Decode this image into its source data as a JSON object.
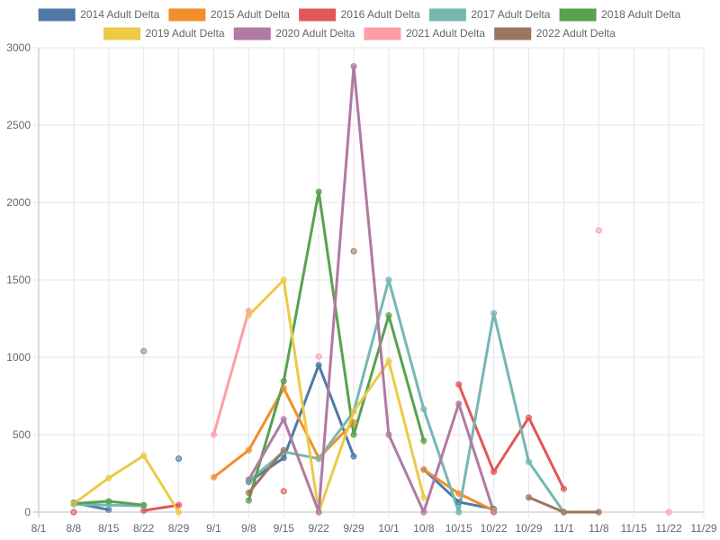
{
  "chart_data": {
    "type": "line",
    "title": "",
    "xlabel": "",
    "ylabel": "",
    "ylim": [
      0,
      3000
    ],
    "y_ticks": [
      0,
      500,
      1000,
      1500,
      2000,
      2500,
      3000
    ],
    "x_ticks": [
      "8/1",
      "8/8",
      "8/15",
      "8/22",
      "8/29",
      "9/1",
      "9/8",
      "9/15",
      "9/22",
      "9/29",
      "10/1",
      "10/8",
      "10/15",
      "10/22",
      "10/29",
      "11/1",
      "11/8",
      "11/15",
      "11/22",
      "11/29"
    ],
    "grid": true,
    "legend_position": "top",
    "series": [
      {
        "name": "2014 Adult Delta",
        "color": "#4e79a7",
        "values": [
          null,
          60,
          15,
          null,
          345,
          null,
          195,
          350,
          950,
          360,
          null,
          275,
          65,
          20,
          null,
          null,
          null,
          null,
          null,
          null
        ]
      },
      {
        "name": "2015 Adult Delta",
        "color": "#f28e2b",
        "values": [
          null,
          null,
          null,
          null,
          null,
          225,
          400,
          800,
          350,
          580,
          null,
          275,
          120,
          10,
          null,
          null,
          null,
          null,
          null,
          null
        ]
      },
      {
        "name": "2016 Adult Delta",
        "color": "#e15759",
        "values": [
          null,
          0,
          null,
          10,
          45,
          null,
          null,
          135,
          null,
          null,
          null,
          null,
          825,
          260,
          610,
          150,
          null,
          null,
          null,
          null
        ]
      },
      {
        "name": "2017 Adult Delta",
        "color": "#76b7b2",
        "values": [
          null,
          50,
          45,
          40,
          null,
          null,
          200,
          390,
          345,
          650,
          1500,
          665,
          0,
          1285,
          325,
          0,
          null,
          null,
          null,
          null
        ]
      },
      {
        "name": "2018 Adult Delta",
        "color": "#59a14f",
        "values": [
          null,
          55,
          70,
          45,
          null,
          null,
          75,
          845,
          2070,
          500,
          1270,
          460,
          null,
          null,
          null,
          null,
          null,
          null,
          null,
          null
        ]
      },
      {
        "name": "2019 Adult Delta",
        "color": "#edc948",
        "values": [
          null,
          55,
          220,
          365,
          0,
          null,
          1270,
          1500,
          0,
          650,
          975,
          95,
          null,
          0,
          null,
          null,
          null,
          null,
          null,
          null
        ]
      },
      {
        "name": "2020 Adult Delta",
        "color": "#b07aa1",
        "values": [
          null,
          null,
          null,
          1040,
          null,
          null,
          210,
          600,
          0,
          2880,
          500,
          0,
          700,
          0,
          null,
          null,
          null,
          null,
          null,
          null
        ]
      },
      {
        "name": "2021 Adult Delta",
        "color": "#ff9da7",
        "values": [
          null,
          null,
          null,
          null,
          null,
          500,
          1300,
          null,
          1005,
          null,
          null,
          null,
          null,
          null,
          null,
          null,
          1820,
          null,
          0,
          null
        ]
      },
      {
        "name": "2022 Adult Delta",
        "color": "#9c755f",
        "values": [
          null,
          null,
          null,
          null,
          null,
          null,
          125,
          400,
          null,
          1685,
          null,
          null,
          null,
          null,
          95,
          0,
          0,
          null,
          null,
          null
        ]
      }
    ]
  }
}
